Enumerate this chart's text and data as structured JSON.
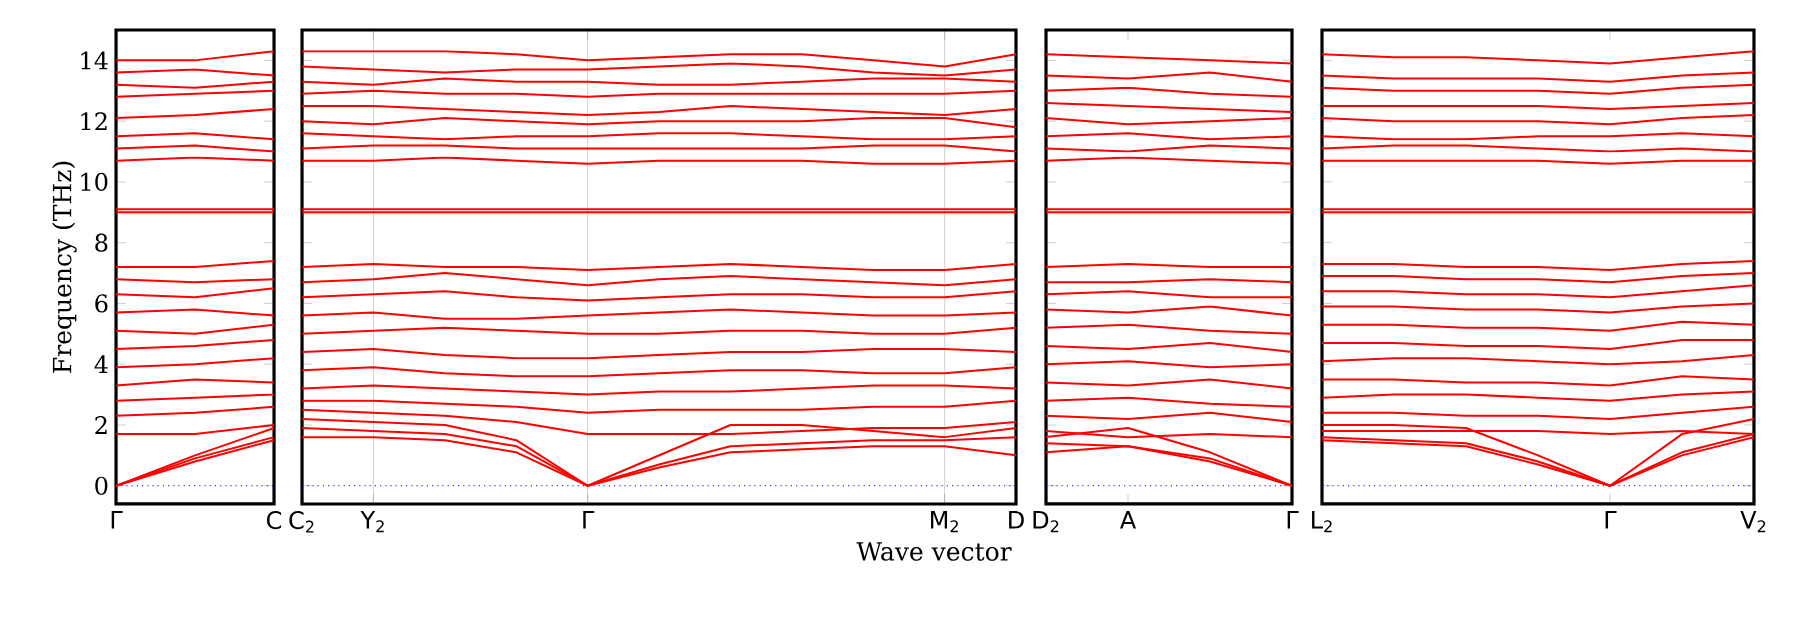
{
  "chart_data": [
    {
      "type": "line",
      "ylabel": "Frequency (THz)",
      "line_style": "solid",
      "categories": [
        "Γ",
        null,
        "C"
      ],
      "ylim": [
        -0.6,
        15
      ],
      "yticks": [
        0,
        2,
        4,
        6,
        8,
        10,
        12,
        14
      ],
      "ref_lines": [
        {
          "axis": "y",
          "value": 0,
          "color": "#0000ff",
          "line_style": "dotted"
        }
      ],
      "series": [
        {
          "color": "#ff0000",
          "values": [
            0,
            0.8,
            1.5
          ]
        },
        {
          "color": "#ff0000",
          "values": [
            0,
            0.9,
            1.6
          ]
        },
        {
          "color": "#ff0000",
          "values": [
            0,
            1.0,
            1.9
          ]
        },
        {
          "color": "#ff0000",
          "values": [
            1.7,
            1.7,
            2.0
          ]
        },
        {
          "color": "#ff0000",
          "values": [
            2.3,
            2.4,
            2.6
          ]
        },
        {
          "color": "#ff0000",
          "values": [
            2.8,
            2.9,
            3.0
          ]
        },
        {
          "color": "#ff0000",
          "values": [
            3.3,
            3.5,
            3.4
          ]
        },
        {
          "color": "#ff0000",
          "values": [
            3.9,
            4.0,
            4.2
          ]
        },
        {
          "color": "#ff0000",
          "values": [
            4.5,
            4.6,
            4.8
          ]
        },
        {
          "color": "#ff0000",
          "values": [
            5.1,
            5.0,
            5.3
          ]
        },
        {
          "color": "#ff0000",
          "values": [
            5.7,
            5.8,
            5.6
          ]
        },
        {
          "color": "#ff0000",
          "values": [
            6.3,
            6.2,
            6.5
          ]
        },
        {
          "color": "#ff0000",
          "values": [
            6.8,
            6.7,
            6.8
          ]
        },
        {
          "color": "#ff0000",
          "values": [
            7.2,
            7.2,
            7.4
          ]
        },
        {
          "color": "#ff0000",
          "values": [
            9.0,
            9.0,
            9.0
          ]
        },
        {
          "color": "#ff0000",
          "values": [
            9.1,
            9.1,
            9.1
          ]
        },
        {
          "color": "#ff0000",
          "values": [
            10.7,
            10.8,
            10.7
          ]
        },
        {
          "color": "#ff0000",
          "values": [
            11.1,
            11.2,
            11.0
          ]
        },
        {
          "color": "#ff0000",
          "values": [
            11.5,
            11.6,
            11.4
          ]
        },
        {
          "color": "#ff0000",
          "values": [
            12.1,
            12.2,
            12.4
          ]
        },
        {
          "color": "#ff0000",
          "values": [
            12.8,
            12.9,
            13.0
          ]
        },
        {
          "color": "#ff0000",
          "values": [
            13.2,
            13.1,
            13.3
          ]
        },
        {
          "color": "#ff0000",
          "values": [
            13.6,
            13.7,
            13.5
          ]
        },
        {
          "color": "#ff0000",
          "values": [
            14.0,
            14.0,
            14.3
          ]
        }
      ]
    },
    {
      "type": "line",
      "xlabel": "Wave vector",
      "line_style": "solid",
      "grid": "x",
      "tick_labels": "x",
      "categories": [
        "C$_{2}$",
        "Y$_{2}$",
        null,
        null,
        "Γ",
        null,
        null,
        null,
        null,
        "M$_{2}$",
        "D"
      ],
      "ylim": [
        -0.6,
        15
      ],
      "yticks": [
        0,
        2,
        4,
        6,
        8,
        10,
        12,
        14
      ],
      "ref_lines": [
        {
          "axis": "y",
          "value": 0,
          "color": "#0000ff",
          "line_style": "dotted"
        }
      ],
      "series": [
        {
          "color": "#ff0000",
          "values": [
            1.6,
            1.6,
            1.5,
            1.1,
            0,
            0.6,
            1.1,
            1.2,
            1.3,
            1.3,
            1.0
          ]
        },
        {
          "color": "#ff0000",
          "values": [
            1.9,
            1.8,
            1.7,
            1.3,
            0,
            0.7,
            1.3,
            1.4,
            1.5,
            1.5,
            1.6
          ]
        },
        {
          "color": "#ff0000",
          "values": [
            2.2,
            2.1,
            2.0,
            1.5,
            0,
            1.0,
            2.0,
            2.0,
            1.8,
            1.6,
            1.9
          ]
        },
        {
          "color": "#ff0000",
          "values": [
            2.5,
            2.4,
            2.3,
            2.1,
            1.7,
            1.7,
            1.7,
            1.8,
            1.9,
            1.9,
            2.1
          ]
        },
        {
          "color": "#ff0000",
          "values": [
            2.8,
            2.8,
            2.7,
            2.6,
            2.4,
            2.5,
            2.5,
            2.5,
            2.6,
            2.6,
            2.8
          ]
        },
        {
          "color": "#ff0000",
          "values": [
            3.2,
            3.3,
            3.2,
            3.1,
            3.0,
            3.1,
            3.1,
            3.2,
            3.3,
            3.3,
            3.2
          ]
        },
        {
          "color": "#ff0000",
          "values": [
            3.8,
            3.9,
            3.7,
            3.6,
            3.6,
            3.7,
            3.8,
            3.8,
            3.7,
            3.7,
            3.9
          ]
        },
        {
          "color": "#ff0000",
          "values": [
            4.4,
            4.5,
            4.3,
            4.2,
            4.2,
            4.3,
            4.4,
            4.4,
            4.5,
            4.5,
            4.4
          ]
        },
        {
          "color": "#ff0000",
          "values": [
            5.0,
            5.1,
            5.2,
            5.1,
            5.0,
            5.0,
            5.1,
            5.1,
            5.0,
            5.0,
            5.2
          ]
        },
        {
          "color": "#ff0000",
          "values": [
            5.6,
            5.7,
            5.5,
            5.5,
            5.6,
            5.7,
            5.8,
            5.7,
            5.6,
            5.6,
            5.7
          ]
        },
        {
          "color": "#ff0000",
          "values": [
            6.2,
            6.3,
            6.4,
            6.2,
            6.1,
            6.2,
            6.3,
            6.3,
            6.2,
            6.2,
            6.4
          ]
        },
        {
          "color": "#ff0000",
          "values": [
            6.7,
            6.8,
            7.0,
            6.8,
            6.6,
            6.8,
            6.9,
            6.8,
            6.7,
            6.6,
            6.8
          ]
        },
        {
          "color": "#ff0000",
          "values": [
            7.2,
            7.3,
            7.2,
            7.2,
            7.1,
            7.2,
            7.3,
            7.2,
            7.1,
            7.1,
            7.3
          ]
        },
        {
          "color": "#ff0000",
          "values": [
            9.0,
            9.0,
            9.0,
            9.0,
            9.0,
            9.0,
            9.0,
            9.0,
            9.0,
            9.0,
            9.0
          ]
        },
        {
          "color": "#ff0000",
          "values": [
            9.1,
            9.1,
            9.1,
            9.1,
            9.1,
            9.1,
            9.1,
            9.1,
            9.1,
            9.1,
            9.1
          ]
        },
        {
          "color": "#ff0000",
          "values": [
            10.7,
            10.7,
            10.8,
            10.7,
            10.6,
            10.7,
            10.7,
            10.7,
            10.6,
            10.6,
            10.7
          ]
        },
        {
          "color": "#ff0000",
          "values": [
            11.1,
            11.2,
            11.2,
            11.1,
            11.1,
            11.1,
            11.1,
            11.1,
            11.2,
            11.2,
            11.0
          ]
        },
        {
          "color": "#ff0000",
          "values": [
            11.6,
            11.5,
            11.4,
            11.5,
            11.5,
            11.6,
            11.6,
            11.5,
            11.4,
            11.4,
            11.5
          ]
        },
        {
          "color": "#ff0000",
          "values": [
            12.0,
            11.9,
            12.1,
            12.0,
            11.9,
            12.0,
            12.0,
            12.0,
            12.1,
            12.1,
            11.8
          ]
        },
        {
          "color": "#ff0000",
          "values": [
            12.5,
            12.5,
            12.4,
            12.3,
            12.2,
            12.3,
            12.5,
            12.4,
            12.3,
            12.2,
            12.4
          ]
        },
        {
          "color": "#ff0000",
          "values": [
            12.9,
            13.0,
            12.9,
            12.9,
            12.8,
            12.9,
            12.9,
            12.9,
            12.9,
            12.9,
            13.0
          ]
        },
        {
          "color": "#ff0000",
          "values": [
            13.3,
            13.2,
            13.4,
            13.3,
            13.3,
            13.2,
            13.2,
            13.3,
            13.4,
            13.4,
            13.3
          ]
        },
        {
          "color": "#ff0000",
          "values": [
            13.8,
            13.7,
            13.6,
            13.7,
            13.7,
            13.8,
            13.9,
            13.8,
            13.6,
            13.5,
            13.7
          ]
        },
        {
          "color": "#ff0000",
          "values": [
            14.3,
            14.3,
            14.3,
            14.2,
            14.0,
            14.1,
            14.2,
            14.2,
            14.0,
            13.8,
            14.2
          ]
        }
      ]
    },
    {
      "type": "line",
      "line_style": "solid",
      "tick_labels": "x",
      "categories": [
        "D$_{2}$",
        "A",
        null,
        "Γ"
      ],
      "ylim": [
        -0.6,
        15
      ],
      "yticks": [
        0,
        2,
        4,
        6,
        8,
        10,
        12,
        14
      ],
      "ref_lines": [
        {
          "axis": "y",
          "value": 0,
          "color": "#0000ff",
          "line_style": "dotted"
        }
      ],
      "series": [
        {
          "color": "#ff0000",
          "values": [
            1.1,
            1.3,
            0.8,
            0
          ]
        },
        {
          "color": "#ff0000",
          "values": [
            1.4,
            1.3,
            0.9,
            0
          ]
        },
        {
          "color": "#ff0000",
          "values": [
            1.6,
            1.9,
            1.1,
            0
          ]
        },
        {
          "color": "#ff0000",
          "values": [
            1.8,
            1.6,
            1.7,
            1.6
          ]
        },
        {
          "color": "#ff0000",
          "values": [
            2.3,
            2.2,
            2.4,
            2.1
          ]
        },
        {
          "color": "#ff0000",
          "values": [
            2.8,
            2.9,
            2.7,
            2.6
          ]
        },
        {
          "color": "#ff0000",
          "values": [
            3.4,
            3.3,
            3.5,
            3.2
          ]
        },
        {
          "color": "#ff0000",
          "values": [
            4.0,
            4.1,
            3.9,
            4.0
          ]
        },
        {
          "color": "#ff0000",
          "values": [
            4.6,
            4.5,
            4.7,
            4.4
          ]
        },
        {
          "color": "#ff0000",
          "values": [
            5.2,
            5.3,
            5.1,
            5.0
          ]
        },
        {
          "color": "#ff0000",
          "values": [
            5.8,
            5.7,
            5.9,
            5.6
          ]
        },
        {
          "color": "#ff0000",
          "values": [
            6.3,
            6.4,
            6.2,
            6.2
          ]
        },
        {
          "color": "#ff0000",
          "values": [
            6.7,
            6.7,
            6.8,
            6.7
          ]
        },
        {
          "color": "#ff0000",
          "values": [
            7.2,
            7.3,
            7.2,
            7.2
          ]
        },
        {
          "color": "#ff0000",
          "values": [
            9.0,
            9.0,
            9.0,
            9.0
          ]
        },
        {
          "color": "#ff0000",
          "values": [
            9.1,
            9.1,
            9.1,
            9.1
          ]
        },
        {
          "color": "#ff0000",
          "values": [
            10.7,
            10.8,
            10.7,
            10.6
          ]
        },
        {
          "color": "#ff0000",
          "values": [
            11.1,
            11.0,
            11.2,
            11.1
          ]
        },
        {
          "color": "#ff0000",
          "values": [
            11.5,
            11.6,
            11.4,
            11.5
          ]
        },
        {
          "color": "#ff0000",
          "values": [
            12.1,
            11.9,
            12.0,
            12.1
          ]
        },
        {
          "color": "#ff0000",
          "values": [
            12.6,
            12.5,
            12.4,
            12.3
          ]
        },
        {
          "color": "#ff0000",
          "values": [
            13.0,
            13.1,
            12.9,
            12.8
          ]
        },
        {
          "color": "#ff0000",
          "values": [
            13.5,
            13.4,
            13.6,
            13.3
          ]
        },
        {
          "color": "#ff0000",
          "values": [
            14.2,
            14.1,
            14.0,
            13.9
          ]
        }
      ]
    },
    {
      "type": "line",
      "line_style": "solid",
      "tick_labels": "x",
      "categories": [
        "L$_{2}$",
        null,
        null,
        null,
        "Γ",
        null,
        "V$_{2}$"
      ],
      "ylim": [
        -0.6,
        15
      ],
      "yticks": [
        0,
        2,
        4,
        6,
        8,
        10,
        12,
        14
      ],
      "ref_lines": [
        {
          "axis": "y",
          "value": 0,
          "color": "#0000ff",
          "line_style": "dotted"
        }
      ],
      "series": [
        {
          "color": "#ff0000",
          "values": [
            1.5,
            1.4,
            1.3,
            0.7,
            0,
            1.0,
            1.6
          ]
        },
        {
          "color": "#ff0000",
          "values": [
            1.6,
            1.5,
            1.4,
            0.8,
            0,
            1.1,
            1.7
          ]
        },
        {
          "color": "#ff0000",
          "values": [
            2.0,
            2.0,
            1.9,
            1.0,
            0,
            1.7,
            2.2
          ]
        },
        {
          "color": "#ff0000",
          "values": [
            1.8,
            1.8,
            1.8,
            1.8,
            1.7,
            1.8,
            1.7
          ]
        },
        {
          "color": "#ff0000",
          "values": [
            2.4,
            2.4,
            2.3,
            2.3,
            2.2,
            2.4,
            2.6
          ]
        },
        {
          "color": "#ff0000",
          "values": [
            2.9,
            3.0,
            3.0,
            2.9,
            2.8,
            3.0,
            3.1
          ]
        },
        {
          "color": "#ff0000",
          "values": [
            3.5,
            3.5,
            3.4,
            3.4,
            3.3,
            3.6,
            3.5
          ]
        },
        {
          "color": "#ff0000",
          "values": [
            4.1,
            4.2,
            4.2,
            4.1,
            4.0,
            4.1,
            4.3
          ]
        },
        {
          "color": "#ff0000",
          "values": [
            4.7,
            4.7,
            4.6,
            4.6,
            4.5,
            4.8,
            4.8
          ]
        },
        {
          "color": "#ff0000",
          "values": [
            5.3,
            5.3,
            5.2,
            5.2,
            5.1,
            5.4,
            5.3
          ]
        },
        {
          "color": "#ff0000",
          "values": [
            5.9,
            5.9,
            5.8,
            5.8,
            5.7,
            5.9,
            6.0
          ]
        },
        {
          "color": "#ff0000",
          "values": [
            6.4,
            6.4,
            6.3,
            6.3,
            6.2,
            6.4,
            6.6
          ]
        },
        {
          "color": "#ff0000",
          "values": [
            6.9,
            6.9,
            6.8,
            6.8,
            6.7,
            6.9,
            7.0
          ]
        },
        {
          "color": "#ff0000",
          "values": [
            7.3,
            7.3,
            7.2,
            7.2,
            7.1,
            7.3,
            7.4
          ]
        },
        {
          "color": "#ff0000",
          "values": [
            9.0,
            9.0,
            9.0,
            9.0,
            9.0,
            9.0,
            9.0
          ]
        },
        {
          "color": "#ff0000",
          "values": [
            9.1,
            9.1,
            9.1,
            9.1,
            9.1,
            9.1,
            9.1
          ]
        },
        {
          "color": "#ff0000",
          "values": [
            10.7,
            10.7,
            10.7,
            10.7,
            10.6,
            10.7,
            10.7
          ]
        },
        {
          "color": "#ff0000",
          "values": [
            11.1,
            11.2,
            11.2,
            11.1,
            11.0,
            11.1,
            11.0
          ]
        },
        {
          "color": "#ff0000",
          "values": [
            11.5,
            11.4,
            11.4,
            11.5,
            11.5,
            11.6,
            11.5
          ]
        },
        {
          "color": "#ff0000",
          "values": [
            12.1,
            12.0,
            12.0,
            12.0,
            11.9,
            12.1,
            12.2
          ]
        },
        {
          "color": "#ff0000",
          "values": [
            12.5,
            12.5,
            12.5,
            12.5,
            12.4,
            12.5,
            12.6
          ]
        },
        {
          "color": "#ff0000",
          "values": [
            13.1,
            13.0,
            13.0,
            13.0,
            12.9,
            13.1,
            13.2
          ]
        },
        {
          "color": "#ff0000",
          "values": [
            13.5,
            13.4,
            13.4,
            13.4,
            13.3,
            13.5,
            13.6
          ]
        },
        {
          "color": "#ff0000",
          "values": [
            14.2,
            14.1,
            14.1,
            14.0,
            13.9,
            14.1,
            14.3
          ]
        }
      ]
    }
  ]
}
